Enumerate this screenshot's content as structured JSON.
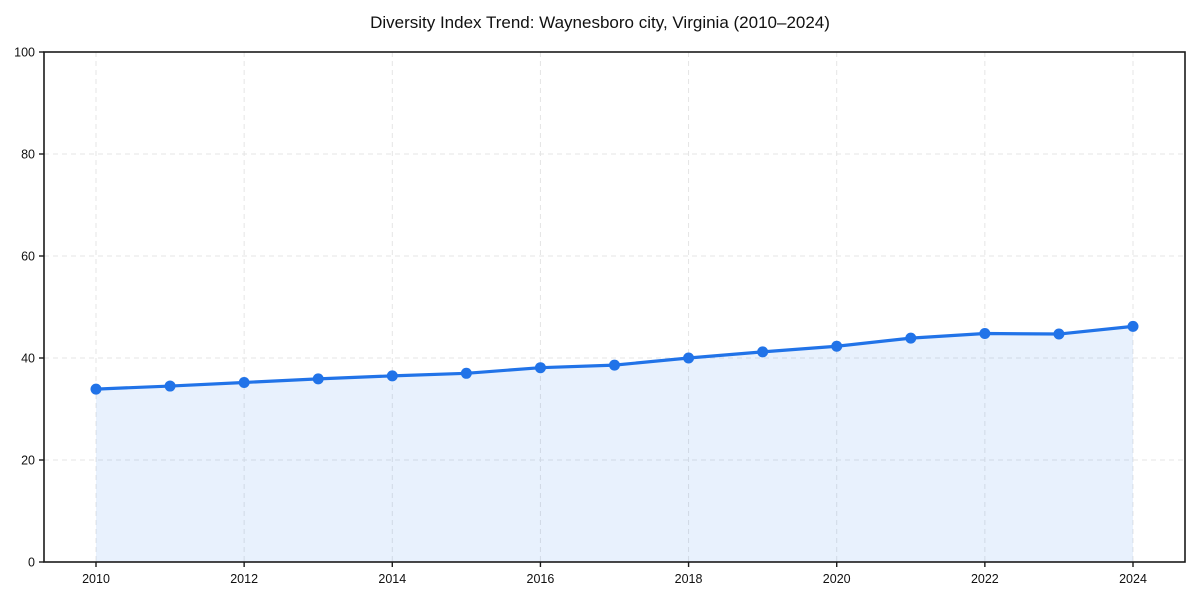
{
  "chart_data": {
    "type": "area",
    "title": "Diversity Index Trend: Waynesboro city, Virginia (2010–2024)",
    "x": [
      2010,
      2011,
      2012,
      2013,
      2014,
      2015,
      2016,
      2017,
      2018,
      2019,
      2020,
      2021,
      2022,
      2023,
      2024
    ],
    "series": [
      {
        "name": "Diversity Index",
        "values": [
          33.9,
          34.5,
          35.2,
          35.9,
          36.5,
          37.0,
          38.1,
          38.6,
          40.0,
          41.2,
          42.3,
          43.9,
          44.8,
          44.7,
          46.2
        ]
      }
    ],
    "xlabel": "",
    "ylabel": "",
    "ylim": [
      0,
      100
    ],
    "yticks": [
      0,
      20,
      40,
      60,
      80,
      100
    ],
    "xticks": [
      2010,
      2012,
      2014,
      2016,
      2018,
      2020,
      2022,
      2024
    ],
    "grid": true,
    "legend": "none",
    "colors": {
      "line": "#2173e8",
      "marker": "#2173e8",
      "fill": "#2173e8",
      "fill_opacity": 0.1,
      "gridline": "#e5e5e5",
      "axis": "#1a1a1a",
      "tick_label": "#111111",
      "background": "#ffffff"
    }
  }
}
